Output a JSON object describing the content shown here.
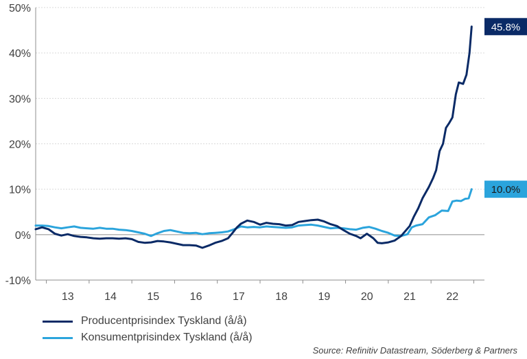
{
  "chart_data": {
    "type": "line",
    "xlabel": "",
    "ylabel": "",
    "xlim": [
      2012.25,
      2022.75
    ],
    "ylim": [
      -10,
      50
    ],
    "y_ticks": [
      {
        "value": 50,
        "label": "50%"
      },
      {
        "value": 40,
        "label": "40%"
      },
      {
        "value": 30,
        "label": "30%"
      },
      {
        "value": 20,
        "label": "20%"
      },
      {
        "value": 10,
        "label": "10%"
      },
      {
        "value": 0,
        "label": "0%"
      },
      {
        "value": -10,
        "label": "-10%"
      }
    ],
    "x_ticks": [
      {
        "value": 2013,
        "label": "13"
      },
      {
        "value": 2014,
        "label": "14"
      },
      {
        "value": 2015,
        "label": "15"
      },
      {
        "value": 2016,
        "label": "16"
      },
      {
        "value": 2017,
        "label": "17"
      },
      {
        "value": 2018,
        "label": "18"
      },
      {
        "value": 2019,
        "label": "19"
      },
      {
        "value": 2020,
        "label": "20"
      },
      {
        "value": 2021,
        "label": "21"
      },
      {
        "value": 2022,
        "label": "22"
      }
    ],
    "grid": "horizontal",
    "legend": "bottom-left",
    "series": [
      {
        "name": "Producentprisindex Tyskland (å/å)",
        "color": "#0a2a66",
        "end_label": "45.8%",
        "points": [
          [
            2012.25,
            1.2
          ],
          [
            2012.4,
            1.6
          ],
          [
            2012.55,
            1.2
          ],
          [
            2012.7,
            0.2
          ],
          [
            2012.85,
            -0.2
          ],
          [
            2013.0,
            0.1
          ],
          [
            2013.15,
            -0.3
          ],
          [
            2013.3,
            -0.5
          ],
          [
            2013.45,
            -0.6
          ],
          [
            2013.6,
            -0.8
          ],
          [
            2013.75,
            -0.9
          ],
          [
            2013.9,
            -0.8
          ],
          [
            2014.05,
            -0.8
          ],
          [
            2014.2,
            -0.9
          ],
          [
            2014.35,
            -0.8
          ],
          [
            2014.5,
            -1.0
          ],
          [
            2014.65,
            -1.6
          ],
          [
            2014.8,
            -1.8
          ],
          [
            2014.95,
            -1.7
          ],
          [
            2015.1,
            -1.4
          ],
          [
            2015.25,
            -1.5
          ],
          [
            2015.4,
            -1.7
          ],
          [
            2015.55,
            -2.0
          ],
          [
            2015.7,
            -2.3
          ],
          [
            2015.85,
            -2.3
          ],
          [
            2016.0,
            -2.4
          ],
          [
            2016.15,
            -2.9
          ],
          [
            2016.3,
            -2.4
          ],
          [
            2016.45,
            -1.8
          ],
          [
            2016.6,
            -1.4
          ],
          [
            2016.75,
            -0.8
          ],
          [
            2016.85,
            0.3
          ],
          [
            2016.95,
            1.5
          ],
          [
            2017.05,
            2.4
          ],
          [
            2017.2,
            3.1
          ],
          [
            2017.35,
            2.8
          ],
          [
            2017.5,
            2.2
          ],
          [
            2017.65,
            2.6
          ],
          [
            2017.8,
            2.4
          ],
          [
            2017.95,
            2.3
          ],
          [
            2018.1,
            2.0
          ],
          [
            2018.25,
            2.1
          ],
          [
            2018.4,
            2.8
          ],
          [
            2018.55,
            3.0
          ],
          [
            2018.7,
            3.2
          ],
          [
            2018.85,
            3.3
          ],
          [
            2019.0,
            2.9
          ],
          [
            2019.15,
            2.3
          ],
          [
            2019.3,
            1.9
          ],
          [
            2019.45,
            1.0
          ],
          [
            2019.6,
            0.2
          ],
          [
            2019.75,
            -0.3
          ],
          [
            2019.85,
            -0.8
          ],
          [
            2020.0,
            0.2
          ],
          [
            2020.15,
            -0.8
          ],
          [
            2020.25,
            -1.8
          ],
          [
            2020.35,
            -1.9
          ],
          [
            2020.5,
            -1.7
          ],
          [
            2020.65,
            -1.3
          ],
          [
            2020.8,
            -0.3
          ],
          [
            2021.0,
            1.9
          ],
          [
            2021.1,
            4.0
          ],
          [
            2021.2,
            5.8
          ],
          [
            2021.3,
            8.0
          ],
          [
            2021.45,
            10.5
          ],
          [
            2021.55,
            12.5
          ],
          [
            2021.62,
            14.2
          ],
          [
            2021.7,
            18.4
          ],
          [
            2021.78,
            20.0
          ],
          [
            2021.85,
            23.5
          ],
          [
            2021.92,
            24.5
          ],
          [
            2022.0,
            25.8
          ],
          [
            2022.08,
            30.9
          ],
          [
            2022.15,
            33.5
          ],
          [
            2022.25,
            33.2
          ],
          [
            2022.33,
            35.2
          ],
          [
            2022.4,
            40.0
          ],
          [
            2022.45,
            45.8
          ]
        ]
      },
      {
        "name": "Konsumentprisindex Tyskland (å/å)",
        "color": "#2ba4dc",
        "end_label": "10.0%",
        "points": [
          [
            2012.25,
            2.0
          ],
          [
            2012.4,
            2.0
          ],
          [
            2012.55,
            1.9
          ],
          [
            2012.7,
            1.6
          ],
          [
            2012.85,
            1.4
          ],
          [
            2013.0,
            1.6
          ],
          [
            2013.15,
            1.8
          ],
          [
            2013.3,
            1.5
          ],
          [
            2013.45,
            1.4
          ],
          [
            2013.6,
            1.3
          ],
          [
            2013.75,
            1.5
          ],
          [
            2013.9,
            1.3
          ],
          [
            2014.05,
            1.3
          ],
          [
            2014.2,
            1.1
          ],
          [
            2014.35,
            1.0
          ],
          [
            2014.5,
            0.8
          ],
          [
            2014.65,
            0.5
          ],
          [
            2014.8,
            0.2
          ],
          [
            2014.95,
            -0.3
          ],
          [
            2015.1,
            0.3
          ],
          [
            2015.25,
            0.8
          ],
          [
            2015.4,
            1.0
          ],
          [
            2015.55,
            0.7
          ],
          [
            2015.7,
            0.4
          ],
          [
            2015.85,
            0.3
          ],
          [
            2016.0,
            0.4
          ],
          [
            2016.15,
            0.1
          ],
          [
            2016.3,
            0.3
          ],
          [
            2016.45,
            0.4
          ],
          [
            2016.6,
            0.5
          ],
          [
            2016.75,
            0.7
          ],
          [
            2016.9,
            1.2
          ],
          [
            2017.05,
            1.8
          ],
          [
            2017.2,
            1.6
          ],
          [
            2017.35,
            1.7
          ],
          [
            2017.5,
            1.6
          ],
          [
            2017.65,
            1.8
          ],
          [
            2017.8,
            1.7
          ],
          [
            2017.95,
            1.6
          ],
          [
            2018.1,
            1.5
          ],
          [
            2018.25,
            1.6
          ],
          [
            2018.4,
            2.0
          ],
          [
            2018.55,
            2.1
          ],
          [
            2018.7,
            2.2
          ],
          [
            2018.85,
            2.0
          ],
          [
            2019.0,
            1.7
          ],
          [
            2019.15,
            1.4
          ],
          [
            2019.3,
            1.5
          ],
          [
            2019.45,
            1.4
          ],
          [
            2019.6,
            1.2
          ],
          [
            2019.75,
            1.1
          ],
          [
            2019.9,
            1.5
          ],
          [
            2020.05,
            1.7
          ],
          [
            2020.2,
            1.3
          ],
          [
            2020.35,
            0.8
          ],
          [
            2020.5,
            0.4
          ],
          [
            2020.65,
            -0.2
          ],
          [
            2020.8,
            -0.3
          ],
          [
            2020.95,
            0.1
          ],
          [
            2021.05,
            1.6
          ],
          [
            2021.15,
            2.0
          ],
          [
            2021.3,
            2.3
          ],
          [
            2021.45,
            3.8
          ],
          [
            2021.6,
            4.3
          ],
          [
            2021.75,
            5.3
          ],
          [
            2021.9,
            5.2
          ],
          [
            2022.0,
            7.3
          ],
          [
            2022.1,
            7.5
          ],
          [
            2022.2,
            7.4
          ],
          [
            2022.3,
            7.9
          ],
          [
            2022.38,
            8.0
          ],
          [
            2022.45,
            10.0
          ]
        ]
      }
    ]
  },
  "source": "Source: Refinitiv Datastream, Söderberg & Partners"
}
